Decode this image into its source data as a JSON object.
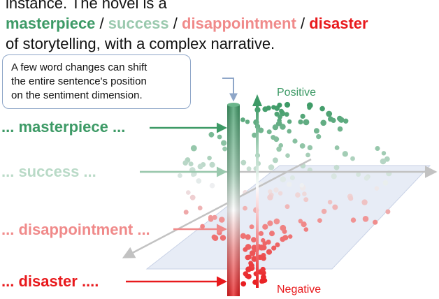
{
  "header": {
    "line1_prefix": "instance. The novel is a",
    "words": [
      "masterpiece",
      "success",
      "disappointment",
      "disaster"
    ],
    "separator": "/",
    "line3": "of storytelling, with a complex narrative."
  },
  "callout": {
    "line1": "A few word changes can shift",
    "line2": "the entire sentence's position",
    "line3": "on the sentiment dimension."
  },
  "labels": {
    "masterpiece": "... masterpiece ...",
    "success": "... success ...",
    "disappointment": "... disappointment ...",
    "disaster": "... disaster ...."
  },
  "axis": {
    "positive": "Positive",
    "negative": "Negative"
  },
  "colors": {
    "masterpiece": "#3d9a66",
    "success": "#9ac9ae",
    "disappointment": "#f08a8a",
    "disaster": "#e8191c",
    "plane": "#dfe5f3",
    "axis_gray": "#c2c2c2"
  }
}
